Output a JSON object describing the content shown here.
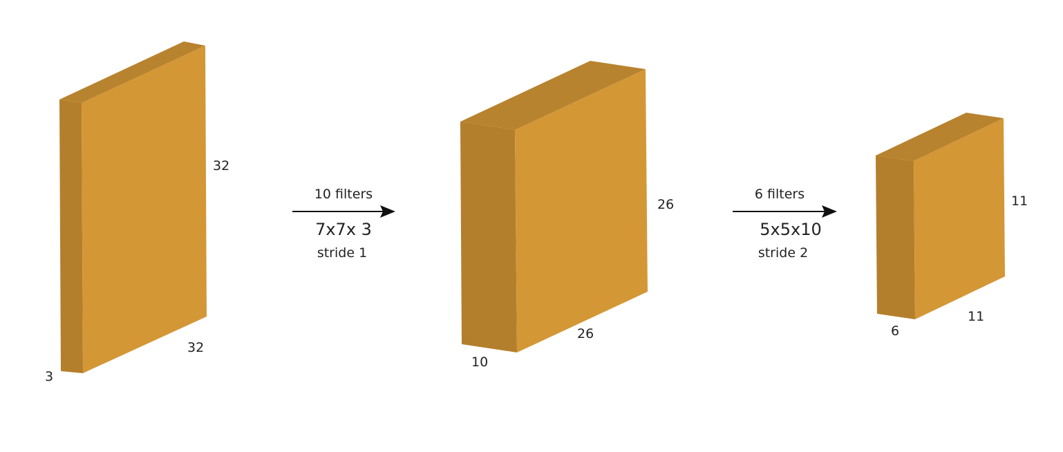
{
  "colors": {
    "front": "#D49736",
    "side": "#B47F2C",
    "top": "#B8832E",
    "arrow": "#111111",
    "text": "#222222"
  },
  "volumes": [
    {
      "height_label": "32",
      "width_label": "32",
      "depth_label": "3"
    },
    {
      "height_label": "26",
      "width_label": "26",
      "depth_label": "10"
    },
    {
      "height_label": "11",
      "width_label": "11",
      "depth_label": "6"
    }
  ],
  "operations": [
    {
      "filters": "10 filters",
      "kernel": "7x7x 3",
      "stride": "stride 1"
    },
    {
      "filters": "6 filters",
      "kernel": "5x5x10",
      "stride": "stride 2"
    }
  ]
}
